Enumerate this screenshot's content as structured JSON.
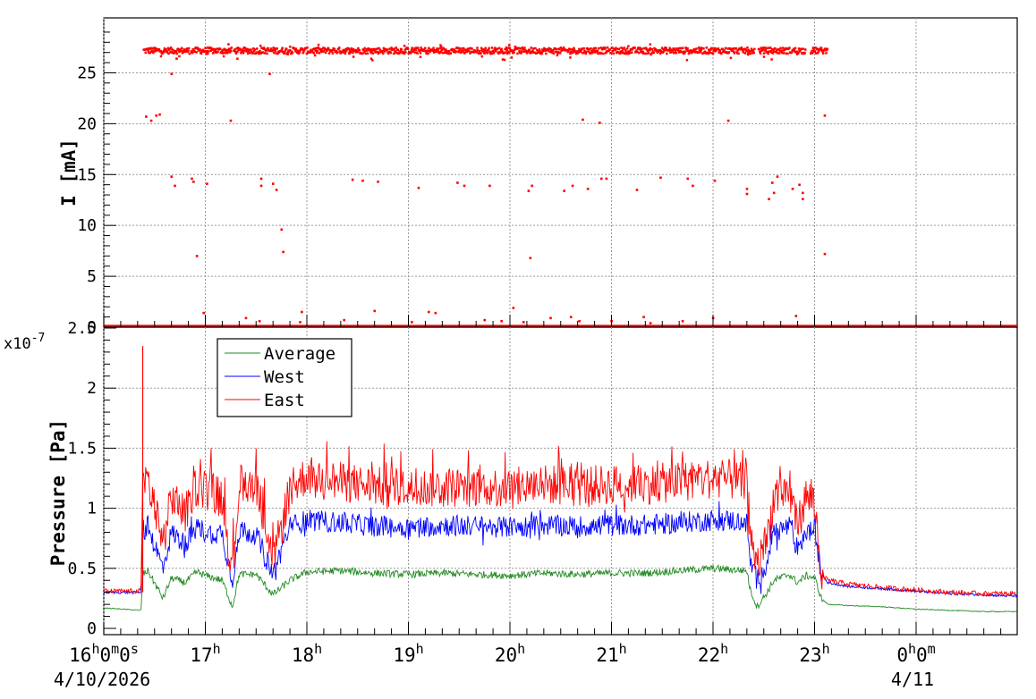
{
  "chart_data": [
    {
      "type": "scatter",
      "ylabel": "I [mA]",
      "ylim": [
        0,
        30
      ],
      "yticks": [
        "0",
        "5",
        "10",
        "15",
        "20",
        "25"
      ],
      "grid": true,
      "x_range": [
        "2026-04-10 16:00",
        "2026-04-11 00:55"
      ],
      "series": [
        {
          "color": "#ff0000",
          "main_band": {
            "x_start": "2026-04-10 16:23",
            "x_end": "2026-04-10 23:07",
            "y": 27.2,
            "gaps": [
              [
                "16:50",
                "16:51"
              ],
              [
                "17:15",
                "17:16"
              ],
              [
                "22:24",
                "22:26"
              ],
              [
                "22:54",
                "22:57"
              ]
            ]
          },
          "baseline": {
            "y": 0.1
          },
          "points": [
            [
              "16:25",
              20.7
            ],
            [
              "16:28",
              20.3
            ],
            [
              "16:31",
              20.8
            ],
            [
              "16:33",
              20.9
            ],
            [
              "16:40",
              24.9
            ],
            [
              "16:43",
              26.4
            ],
            [
              "16:40",
              14.8
            ],
            [
              "16:42",
              13.9
            ],
            [
              "16:52",
              14.6
            ],
            [
              "16:53",
              14.3
            ],
            [
              "16:55",
              7.0
            ],
            [
              "17:01",
              14.1
            ],
            [
              "17:15",
              20.3
            ],
            [
              "17:33",
              14.6
            ],
            [
              "17:33",
              13.9
            ],
            [
              "17:38",
              24.9
            ],
            [
              "17:40",
              14.1
            ],
            [
              "17:42",
              13.5
            ],
            [
              "17:45",
              9.6
            ],
            [
              "17:46",
              7.4
            ],
            [
              "17:57",
              1.5
            ],
            [
              "18:27",
              14.5
            ],
            [
              "18:33",
              14.4
            ],
            [
              "18:42",
              14.3
            ],
            [
              "19:06",
              13.7
            ],
            [
              "19:12",
              1.5
            ],
            [
              "19:29",
              14.2
            ],
            [
              "19:33",
              13.9
            ],
            [
              "19:48",
              13.9
            ],
            [
              "20:02",
              1.9
            ],
            [
              "20:11",
              13.4
            ],
            [
              "20:13",
              13.9
            ],
            [
              "20:12",
              6.8
            ],
            [
              "20:32",
              13.4
            ],
            [
              "20:37",
              13.9
            ],
            [
              "20:43",
              20.4
            ],
            [
              "20:46",
              13.6
            ],
            [
              "20:53",
              20.1
            ],
            [
              "20:54",
              14.6
            ],
            [
              "20:57",
              14.6
            ],
            [
              "21:15",
              13.5
            ],
            [
              "21:29",
              14.7
            ],
            [
              "21:45",
              14.6
            ],
            [
              "21:48",
              13.9
            ],
            [
              "22:01",
              14.4
            ],
            [
              "22:09",
              20.3
            ],
            [
              "22:20",
              13.6
            ],
            [
              "22:20",
              13.1
            ],
            [
              "22:33",
              12.6
            ],
            [
              "22:35",
              14.2
            ],
            [
              "22:38",
              14.8
            ],
            [
              "22:36",
              13.2
            ],
            [
              "22:47",
              13.6
            ],
            [
              "22:51",
              14.0
            ],
            [
              "22:53",
              13.2
            ],
            [
              "22:53",
              12.6
            ],
            [
              "23:06",
              20.8
            ],
            [
              "23:06",
              7.2
            ],
            [
              "16:59",
              1.4
            ],
            [
              "17:24",
              0.9
            ],
            [
              "17:32",
              0.6
            ],
            [
              "17:56",
              0.5
            ],
            [
              "18:22",
              0.7
            ],
            [
              "18:40",
              1.6
            ],
            [
              "19:02",
              0.5
            ],
            [
              "19:16",
              1.4
            ],
            [
              "19:45",
              0.7
            ],
            [
              "20:08",
              0.5
            ],
            [
              "20:24",
              0.9
            ],
            [
              "20:36",
              1.0
            ],
            [
              "20:41",
              0.6
            ],
            [
              "21:00",
              0.6
            ],
            [
              "21:19",
              1.0
            ],
            [
              "21:42",
              0.6
            ],
            [
              "22:00",
              0.9
            ],
            [
              "22:49",
              1.1
            ],
            [
              "21:23",
              0.4
            ],
            [
              "19:55",
              0.6
            ]
          ]
        }
      ]
    },
    {
      "type": "line",
      "ylabel": "Pressure [Pa]",
      "y_exponent": "x10",
      "y_exponent_power": "-7",
      "ylim": [
        0,
        2.5
      ],
      "yticks": [
        "0",
        "0.5",
        "1",
        "1.5",
        "2",
        "2.5"
      ],
      "grid": true,
      "legend_position": "top-left",
      "x_range": [
        "2026-04-10 16:00",
        "2026-04-11 00:55"
      ],
      "spikes": [
        [
          "16:23",
          2.35
        ]
      ],
      "series": [
        {
          "name": "Average",
          "color": "#228b22",
          "x": [
            "16:00",
            "16:22",
            "16:23",
            "16:26",
            "16:35",
            "16:40",
            "16:48",
            "16:55",
            "17:00",
            "17:10",
            "17:16",
            "17:20",
            "17:30",
            "17:40",
            "17:50",
            "18:00",
            "18:20",
            "18:40",
            "19:00",
            "19:20",
            "19:40",
            "20:00",
            "20:20",
            "20:40",
            "21:00",
            "21:20",
            "21:40",
            "22:00",
            "22:10",
            "22:20",
            "22:22",
            "22:26",
            "22:32",
            "22:36",
            "22:45",
            "22:50",
            "22:55",
            "23:00",
            "23:04",
            "23:08",
            "23:20",
            "23:40",
            "00:00",
            "00:20",
            "00:40",
            "00:55"
          ],
          "y": [
            0.17,
            0.15,
            0.45,
            0.48,
            0.25,
            0.42,
            0.38,
            0.47,
            0.44,
            0.4,
            0.18,
            0.45,
            0.45,
            0.28,
            0.4,
            0.47,
            0.48,
            0.46,
            0.45,
            0.46,
            0.45,
            0.44,
            0.46,
            0.45,
            0.46,
            0.46,
            0.48,
            0.5,
            0.49,
            0.48,
            0.32,
            0.18,
            0.3,
            0.4,
            0.45,
            0.38,
            0.44,
            0.42,
            0.25,
            0.2,
            0.19,
            0.18,
            0.16,
            0.15,
            0.14,
            0.14
          ],
          "noise": 0.03
        },
        {
          "name": "West",
          "color": "#0000ff",
          "x": [
            "16:00",
            "16:22",
            "16:23",
            "16:26",
            "16:35",
            "16:40",
            "16:48",
            "16:55",
            "17:00",
            "17:10",
            "17:16",
            "17:20",
            "17:30",
            "17:40",
            "17:50",
            "18:00",
            "18:20",
            "18:40",
            "19:00",
            "19:20",
            "19:40",
            "20:00",
            "20:20",
            "20:40",
            "21:00",
            "21:20",
            "21:40",
            "22:00",
            "22:10",
            "22:20",
            "22:22",
            "22:26",
            "22:32",
            "22:36",
            "22:45",
            "22:50",
            "22:55",
            "23:00",
            "23:04",
            "23:08",
            "23:20",
            "23:40",
            "00:00",
            "00:20",
            "00:40",
            "00:55"
          ],
          "y": [
            0.3,
            0.3,
            0.82,
            0.85,
            0.5,
            0.8,
            0.7,
            0.85,
            0.8,
            0.78,
            0.4,
            0.82,
            0.78,
            0.45,
            0.85,
            0.9,
            0.88,
            0.85,
            0.84,
            0.86,
            0.85,
            0.84,
            0.86,
            0.85,
            0.86,
            0.86,
            0.88,
            0.9,
            0.9,
            0.88,
            0.55,
            0.4,
            0.55,
            0.8,
            0.85,
            0.65,
            0.8,
            0.82,
            0.45,
            0.38,
            0.35,
            0.33,
            0.31,
            0.29,
            0.28,
            0.27
          ],
          "noise": 0.09
        },
        {
          "name": "East",
          "color": "#ff0000",
          "x": [
            "16:00",
            "16:22",
            "16:23",
            "16:26",
            "16:35",
            "16:40",
            "16:48",
            "16:55",
            "17:00",
            "17:10",
            "17:16",
            "17:20",
            "17:30",
            "17:40",
            "17:50",
            "18:00",
            "18:20",
            "18:40",
            "19:00",
            "19:20",
            "19:40",
            "20:00",
            "20:20",
            "20:40",
            "21:00",
            "21:20",
            "21:40",
            "22:00",
            "22:10",
            "22:20",
            "22:22",
            "22:26",
            "22:32",
            "22:36",
            "22:45",
            "22:50",
            "22:55",
            "23:00",
            "23:04",
            "23:08",
            "23:20",
            "23:40",
            "00:00",
            "00:20",
            "00:40",
            "00:55"
          ],
          "y": [
            0.31,
            0.31,
            1.3,
            1.25,
            0.7,
            1.1,
            0.95,
            1.2,
            1.15,
            1.1,
            0.45,
            1.2,
            1.22,
            0.55,
            1.15,
            1.28,
            1.22,
            1.18,
            1.16,
            1.18,
            1.18,
            1.17,
            1.2,
            1.18,
            1.2,
            1.2,
            1.22,
            1.25,
            1.24,
            1.2,
            0.7,
            0.5,
            0.75,
            1.1,
            1.15,
            0.85,
            1.1,
            1.05,
            0.45,
            0.4,
            0.37,
            0.34,
            0.32,
            0.3,
            0.29,
            0.29
          ],
          "noise": 0.17
        }
      ]
    }
  ],
  "x_axis": {
    "ticks": [
      {
        "t": "16:00",
        "main": "16",
        "sup1": "h",
        "main2": "0",
        "sup2": "m",
        "main3": "0",
        "sup3": "s"
      },
      {
        "t": "17:00",
        "main": "17",
        "sup1": "h"
      },
      {
        "t": "18:00",
        "main": "18",
        "sup1": "h"
      },
      {
        "t": "19:00",
        "main": "19",
        "sup1": "h"
      },
      {
        "t": "20:00",
        "main": "20",
        "sup1": "h"
      },
      {
        "t": "21:00",
        "main": "21",
        "sup1": "h"
      },
      {
        "t": "22:00",
        "main": "22",
        "sup1": "h"
      },
      {
        "t": "23:00",
        "main": "23",
        "sup1": "h"
      },
      {
        "t": "00:00",
        "main": "0",
        "sup1": "h",
        "main2": "0",
        "sup2": "m"
      }
    ],
    "date_left": "4/10/2026",
    "date_right": "4/11"
  }
}
